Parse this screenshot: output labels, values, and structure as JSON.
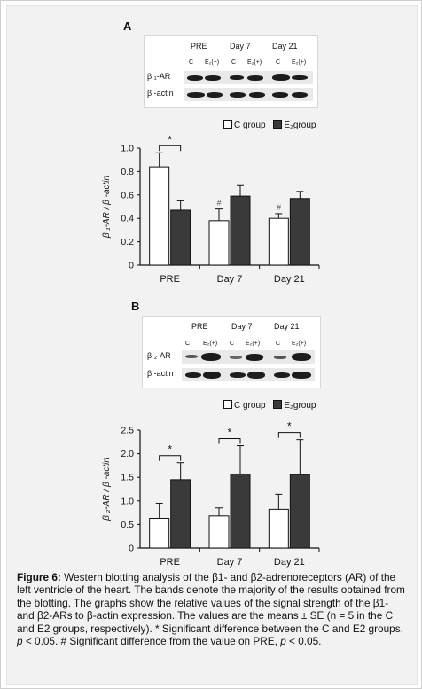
{
  "panelA": {
    "letter": "A",
    "blot": {
      "timepoints": [
        "PRE",
        "Day 7",
        "Day 21"
      ],
      "lanes": [
        "C",
        "E₂(+)",
        "C",
        "E₂(+)",
        "C",
        "E₂(+)"
      ],
      "rows": [
        "β ₁-AR",
        "β -actin"
      ]
    },
    "legend": {
      "c": "C group",
      "e2": "E₂group"
    }
  },
  "panelB": {
    "letter": "B",
    "blot": {
      "timepoints": [
        "PRE",
        "Day 7",
        "Day 21"
      ],
      "lanes": [
        "C",
        "E₂(+)",
        "C",
        "E₂(+)",
        "C",
        "E₂(+)"
      ],
      "rows": [
        "β ₂-AR",
        "β -actin"
      ]
    },
    "legend": {
      "c": "C group",
      "e2": "E₂group"
    }
  },
  "chart_data": [
    {
      "type": "bar",
      "title": "",
      "xlabel": "",
      "ylabel": "β ₁-AR / β -actin",
      "categories": [
        "PRE",
        "Day 7",
        "Day 21"
      ],
      "ylim": [
        0,
        1.0
      ],
      "yticks": [
        "0",
        "0.2",
        "0.4",
        "0.6",
        "0.8",
        "1.0"
      ],
      "series": [
        {
          "name": "C group",
          "values": [
            0.84,
            0.38,
            0.4
          ],
          "errors": [
            0.12,
            0.1,
            0.04
          ],
          "marks": [
            "",
            "#",
            "#"
          ]
        },
        {
          "name": "E₂group",
          "values": [
            0.47,
            0.59,
            0.57
          ],
          "errors": [
            0.08,
            0.09,
            0.06
          ],
          "marks": [
            "",
            "",
            ""
          ]
        }
      ],
      "significance": [
        {
          "category": "PRE",
          "label": "*"
        }
      ],
      "colors": {
        "c": "#ffffff",
        "e2": "#3a3a3a"
      }
    },
    {
      "type": "bar",
      "title": "",
      "xlabel": "",
      "ylabel": "β ₂-AR / β -actin",
      "categories": [
        "PRE",
        "Day 7",
        "Day 21"
      ],
      "ylim": [
        0,
        2.5
      ],
      "yticks": [
        "0",
        "0.5",
        "1.0",
        "1.5",
        "2.0",
        "2.5"
      ],
      "series": [
        {
          "name": "C group",
          "values": [
            0.63,
            0.68,
            0.82
          ],
          "errors": [
            0.32,
            0.17,
            0.32
          ],
          "marks": [
            "",
            "",
            ""
          ]
        },
        {
          "name": "E₂group",
          "values": [
            1.45,
            1.57,
            1.56
          ],
          "errors": [
            0.36,
            0.6,
            0.74
          ],
          "marks": [
            "",
            "",
            ""
          ]
        }
      ],
      "significance": [
        {
          "category": "PRE",
          "label": "*"
        },
        {
          "category": "Day 7",
          "label": "*"
        },
        {
          "category": "Day 21",
          "label": "*"
        }
      ],
      "colors": {
        "c": "#ffffff",
        "e2": "#3a3a3a"
      }
    }
  ],
  "caption": {
    "label": "Figure 6:",
    "text": " Western blotting analysis of the β1- and β2-adrenoreceptors (AR) of the left ventricle of  the heart. The bands denote the majority of the results obtained from the blotting. The graphs show the relative values of the signal strength of the β1- and β2-ARs to β-actin expression. The values are the means ± SE (n = 5 in the C and E2 groups, respectively). * Significant difference between the C and E2 groups, ",
    "p1": "p",
    "t1": " < 0.05. # Significant difference from the value on PRE, ",
    "p2": "p",
    "t2": " < 0.05."
  }
}
